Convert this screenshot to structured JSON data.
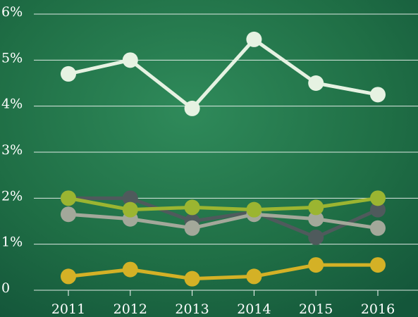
{
  "chart_data": {
    "type": "line",
    "categories": [
      "2011",
      "2012",
      "2013",
      "2014",
      "2015",
      "2016"
    ],
    "series": [
      {
        "color": "#e6f2e2",
        "values": [
          4.7,
          5.0,
          3.95,
          5.45,
          4.5,
          4.25
        ]
      },
      {
        "color": "#4f5a5c",
        "values": [
          2.0,
          2.0,
          1.5,
          1.7,
          1.15,
          1.75
        ]
      },
      {
        "color": "#a3a89a",
        "values": [
          1.65,
          1.55,
          1.35,
          1.65,
          1.55,
          1.35
        ]
      },
      {
        "color": "#9bb531",
        "values": [
          2.0,
          1.75,
          1.8,
          1.75,
          1.8,
          2.0
        ]
      },
      {
        "color": "#d4b126",
        "values": [
          0.3,
          0.45,
          0.25,
          0.3,
          0.55,
          0.55
        ]
      }
    ],
    "ylim": [
      0,
      6
    ],
    "yticks": [
      0,
      {
        "value": 1,
        "label": "1%"
      },
      {
        "value": 2,
        "label": "2%"
      },
      {
        "value": 3,
        "label": "3%"
      },
      {
        "value": 4,
        "label": "4%"
      },
      {
        "value": 5,
        "label": "5%"
      },
      {
        "value": 6,
        "label": "6%"
      }
    ],
    "grid": true
  }
}
